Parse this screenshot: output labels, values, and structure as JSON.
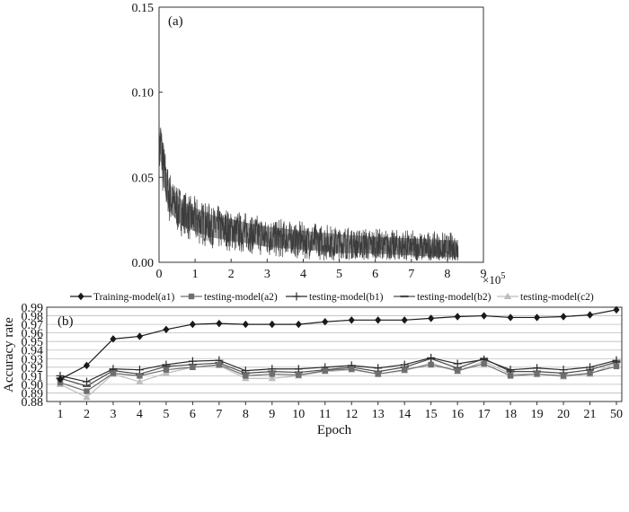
{
  "chart_data": [
    {
      "type": "line",
      "panel_label": "(a)",
      "x_exponent_label": "×10",
      "x_exponent_power": "5",
      "xlim": [
        0,
        9
      ],
      "ylim": [
        0,
        0.15
      ],
      "x_ticks": [
        "0",
        "1",
        "2",
        "3",
        "4",
        "5",
        "6",
        "7",
        "8",
        "9"
      ],
      "y_ticks": [
        "0.00",
        "0.05",
        "0.10",
        "0.15"
      ],
      "grid": false,
      "series": [
        {
          "color": "#3c3c3c",
          "x": [
            0,
            0.05,
            0.1,
            0.2,
            0.3,
            0.5,
            0.7,
            1.0,
            1.5,
            2.0,
            2.5,
            3.0,
            4.0,
            5.0,
            6.0,
            7.0,
            8.0,
            8.3
          ],
          "y": [
            0.065,
            0.07,
            0.06,
            0.045,
            0.038,
            0.032,
            0.028,
            0.025,
            0.021,
            0.019,
            0.017,
            0.015,
            0.013,
            0.011,
            0.01,
            0.009,
            0.008,
            0.008
          ],
          "noise_band": [
            0.016,
            0.02,
            0.02,
            0.017,
            0.016,
            0.015,
            0.014,
            0.014,
            0.013,
            0.013,
            0.012,
            0.012,
            0.011,
            0.011,
            0.01,
            0.01,
            0.01,
            0.01
          ]
        }
      ]
    },
    {
      "type": "line",
      "panel_label": "(b)",
      "xlabel": "Epoch",
      "ylabel": "Accuracy rate",
      "categories": [
        "1",
        "2",
        "3",
        "4",
        "5",
        "6",
        "7",
        "8",
        "9",
        "10",
        "11",
        "12",
        "13",
        "14",
        "15",
        "16",
        "17",
        "18",
        "19",
        "20",
        "21",
        "50"
      ],
      "ylim": [
        0.88,
        0.99
      ],
      "y_ticks": [
        "0.88",
        "0.89",
        "0.90",
        "0.91",
        "0.92",
        "0.93",
        "0.94",
        "0.95",
        "0.96",
        "0.97",
        "0.98",
        "0.99"
      ],
      "grid": true,
      "legend_position": "top",
      "series": [
        {
          "name": "Training-model(a1)",
          "marker": "diamond",
          "color": "#1a1a1a",
          "values": [
            0.906,
            0.922,
            0.953,
            0.956,
            0.964,
            0.97,
            0.971,
            0.97,
            0.97,
            0.97,
            0.973,
            0.975,
            0.975,
            0.975,
            0.977,
            0.979,
            0.98,
            0.978,
            0.978,
            0.979,
            0.981,
            0.987
          ]
        },
        {
          "name": "testing-model(a2)",
          "marker": "square",
          "color": "#6e6e6e",
          "values": [
            0.902,
            0.892,
            0.913,
            0.91,
            0.917,
            0.92,
            0.923,
            0.91,
            0.912,
            0.911,
            0.916,
            0.918,
            0.912,
            0.917,
            0.923,
            0.916,
            0.924,
            0.91,
            0.912,
            0.91,
            0.913,
            0.921
          ]
        },
        {
          "name": "testing-model(b1)",
          "marker": "plus",
          "color": "#2a2a2a",
          "values": [
            0.91,
            0.903,
            0.918,
            0.917,
            0.923,
            0.927,
            0.928,
            0.916,
            0.918,
            0.918,
            0.92,
            0.922,
            0.919,
            0.923,
            0.931,
            0.924,
            0.929,
            0.917,
            0.919,
            0.917,
            0.92,
            0.928
          ]
        },
        {
          "name": "testing-model(b2)",
          "marker": "dash",
          "color": "#4a4a4a",
          "values": [
            0.907,
            0.898,
            0.916,
            0.912,
            0.921,
            0.923,
            0.925,
            0.913,
            0.915,
            0.914,
            0.917,
            0.92,
            0.915,
            0.92,
            0.93,
            0.919,
            0.93,
            0.915,
            0.915,
            0.913,
            0.917,
            0.926
          ]
        },
        {
          "name": "testing-model(c2)",
          "marker": "triangle",
          "color": "#bdbdbd",
          "values": [
            0.9,
            0.885,
            0.912,
            0.903,
            0.913,
            0.92,
            0.922,
            0.907,
            0.907,
            0.91,
            0.915,
            0.917,
            0.912,
            0.916,
            0.925,
            0.915,
            0.927,
            0.912,
            0.912,
            0.909,
            0.912,
            0.925
          ]
        }
      ]
    }
  ]
}
